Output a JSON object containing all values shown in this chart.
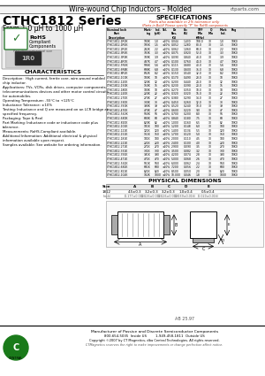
{
  "title_main": "Wire-wound Chip Inductors - Molded",
  "title_website": "ctparts.com",
  "series_title": "CTHC1812 Series",
  "series_subtitle": "From 1.0 μH to 1000 μH",
  "specs_title": "SPECIFICATIONS",
  "specs_note1": "Parts also available in 2% tolerance only",
  "specs_note2": "(Parts in Bold) Please specify \"P\" for RoHS components",
  "characteristics_title": "CHARACTERISTICS",
  "char_lines": [
    "Description:  High current, ferrite core, wire-wound molded",
    "chip inductor.",
    "Applications: TVs, VCRs, disk drives, computer components,",
    "telecommunications devices and other motor control circuits",
    "for automobiles.",
    "Operating Temperature: -55°C to +125°C",
    "Inductance Tolerance: ±10%",
    "Testing: Inductance and Q are measured on an LCR bridge at",
    "specified frequency.",
    "Packaging: Tape & Reel",
    "Part Marking: Inductance code or inductance code plus",
    "tolerance.",
    "Measurements: RoHS-Compliant available.",
    "Additional Information: Additional electrical & physical",
    "information available upon request.",
    "Samples available: See website for ordering information."
  ],
  "physical_dim_title": "PHYSICAL DIMENSIONS",
  "dim_headers": [
    "Size",
    "A",
    "B",
    "C",
    "D",
    "E"
  ],
  "dim_row1": [
    "1812",
    "4.5±0.3",
    "3.2±0.3",
    "3.2±0.3",
    "1.0±0.4",
    "0.5±0.4"
  ],
  "dim_row2": [
    "(Inch)",
    "(0.177±0.012)",
    "(0.126±0.012)",
    "(0.126±0.012)",
    "(0.039±0.016)",
    "(0.020±0.016)"
  ],
  "spec_rows": [
    [
      "CTHC1812-1R0K",
      "1R0K",
      "1.0",
      "±10%",
      "0.044",
      "1.430",
      "108.0",
      "30",
      "1.0",
      "10K0"
    ],
    [
      "CTHC1812-1R5K",
      "1R5K",
      "1.5",
      "±10%",
      "0.052",
      "1.280",
      "80.0",
      "30",
      "1.5",
      "10K0"
    ],
    [
      "CTHC1812-2R2K",
      "2R2K",
      "2.2",
      "±10%",
      "0.062",
      "1.060",
      "68.0",
      "30",
      "2.2",
      "10K0"
    ],
    [
      "CTHC1812-3R3K",
      "3R3K",
      "3.3",
      "±10%",
      "0.075",
      "0.920",
      "52.0",
      "30",
      "3.3",
      "10K0"
    ],
    [
      "CTHC1812-3R9K",
      "3R9K",
      "3.9",
      "±10%",
      "0.090",
      "0.840",
      "48.0",
      "30",
      "3.9",
      "10K0"
    ],
    [
      "CTHC1812-4R7K",
      "4R7K",
      "4.7",
      "±10%",
      "0.100",
      "0.760",
      "44.0",
      "30",
      "4.7",
      "10K0"
    ],
    [
      "CTHC1812-5R6K",
      "5R6K",
      "5.6",
      "±10%",
      "0.115",
      "0.680",
      "40.0",
      "30",
      "5.6",
      "10K0"
    ],
    [
      "CTHC1812-6R8K",
      "6R8K",
      "6.8",
      "±10%",
      "0.130",
      "0.600",
      "36.0",
      "30",
      "6.8",
      "10K0"
    ],
    [
      "CTHC1812-8R2K",
      "8R2K",
      "8.2",
      "±10%",
      "0.150",
      "0.540",
      "32.0",
      "30",
      "8.2",
      "10K0"
    ],
    [
      "CTHC1812-100K",
      "100K",
      "10",
      "±10%",
      "0.170",
      "0.490",
      "28.0",
      "30",
      "10",
      "10K0"
    ],
    [
      "CTHC1812-120K",
      "120K",
      "12",
      "±10%",
      "0.200",
      "0.440",
      "24.0",
      "30",
      "12",
      "10K0"
    ],
    [
      "CTHC1812-150K",
      "150K",
      "15",
      "±10%",
      "0.230",
      "0.390",
      "20.0",
      "30",
      "15",
      "10K0"
    ],
    [
      "CTHC1812-180K",
      "180K",
      "18",
      "±10%",
      "0.270",
      "0.350",
      "18.0",
      "30",
      "18",
      "10K0"
    ],
    [
      "CTHC1812-220K",
      "220K",
      "22",
      "±10%",
      "0.320",
      "0.320",
      "16.0",
      "30",
      "22",
      "10K0"
    ],
    [
      "CTHC1812-270K",
      "270K",
      "27",
      "±10%",
      "0.380",
      "0.290",
      "14.0",
      "30",
      "27",
      "10K0"
    ],
    [
      "CTHC1812-330K",
      "330K",
      "33",
      "±10%",
      "0.450",
      "0.260",
      "12.0",
      "30",
      "33",
      "10K0"
    ],
    [
      "CTHC1812-390K",
      "390K",
      "39",
      "±10%",
      "0.520",
      "0.240",
      "10.0",
      "30",
      "39",
      "10K0"
    ],
    [
      "CTHC1812-470K",
      "470K",
      "47",
      "±10%",
      "0.600",
      "0.220",
      "9.0",
      "30",
      "47",
      "10K0"
    ],
    [
      "CTHC1812-560K",
      "560K",
      "56",
      "±10%",
      "0.700",
      "0.200",
      "8.0",
      "30",
      "56",
      "10K0"
    ],
    [
      "CTHC1812-680K",
      "680K",
      "68",
      "±10%",
      "0.840",
      "0.180",
      "7.5",
      "30",
      "68",
      "10K0"
    ],
    [
      "CTHC1812-820K",
      "820K",
      "82",
      "±10%",
      "1.000",
      "0.160",
      "6.5",
      "30",
      "82",
      "10K0"
    ],
    [
      "CTHC1812-101K",
      "101K",
      "100",
      "±10%",
      "1.200",
      "0.148",
      "6.0",
      "30",
      "100",
      "10K0"
    ],
    [
      "CTHC1812-121K",
      "121K",
      "120",
      "±10%",
      "1.400",
      "0.134",
      "5.5",
      "30",
      "120",
      "10K0"
    ],
    [
      "CTHC1812-151K",
      "151K",
      "150",
      "±10%",
      "1.700",
      "0.120",
      "5.0",
      "30",
      "150",
      "10K0"
    ],
    [
      "CTHC1812-181K",
      "181K",
      "180",
      "±10%",
      "2.000",
      "0.110",
      "4.5",
      "30",
      "180",
      "10K0"
    ],
    [
      "CTHC1812-221K",
      "221K",
      "220",
      "±10%",
      "2.400",
      "0.100",
      "4.0",
      "30",
      "220",
      "10K0"
    ],
    [
      "CTHC1812-271K",
      "271K",
      "270",
      "±10%",
      "2.900",
      "0.090",
      "3.5",
      "30",
      "270",
      "10K0"
    ],
    [
      "CTHC1812-331K",
      "331K",
      "330",
      "±10%",
      "3.500",
      "0.082",
      "3.2",
      "30",
      "330",
      "10K0"
    ],
    [
      "CTHC1812-391K",
      "391K",
      "390",
      "±10%",
      "4.200",
      "0.074",
      "2.8",
      "30",
      "390",
      "10K0"
    ],
    [
      "CTHC1812-471K",
      "471K",
      "470",
      "±10%",
      "5.000",
      "0.068",
      "2.6",
      "30",
      "470",
      "10K0"
    ],
    [
      "CTHC1812-561K",
      "561K",
      "560",
      "±10%",
      "6.000",
      "0.062",
      "2.4",
      "30",
      "560",
      "10K0"
    ],
    [
      "CTHC1812-681K",
      "681K",
      "680",
      "±10%",
      "7.200",
      "0.056",
      "2.2",
      "30",
      "680",
      "10K0"
    ],
    [
      "CTHC1812-821K",
      "821K",
      "820",
      "±10%",
      "8.500",
      "0.050",
      "2.0",
      "30",
      "820",
      "10K0"
    ],
    [
      "CTHC1812-102K",
      "102K",
      "1000",
      "±10%",
      "10.000",
      "0.046",
      "1.8",
      "30",
      "1000",
      "10K0"
    ]
  ],
  "footer_text1": "Manufacturer of Passive and Discrete Semiconductor Components",
  "footer_text2": "800-654-5035  Inside US        1-949-458-1811  Outside US",
  "footer_text3": "Copyright ©2007 by CT Magnetics, dba Central Technologies. All rights reserved.",
  "footer_text4": "CTMagnetics reserves the right to make improvements or change perfection affect notice.",
  "doc_num": "AB 25.97",
  "bg_color": "#ffffff",
  "rohs_green": "#2e7d32",
  "footer_green": "#1a7a1a"
}
